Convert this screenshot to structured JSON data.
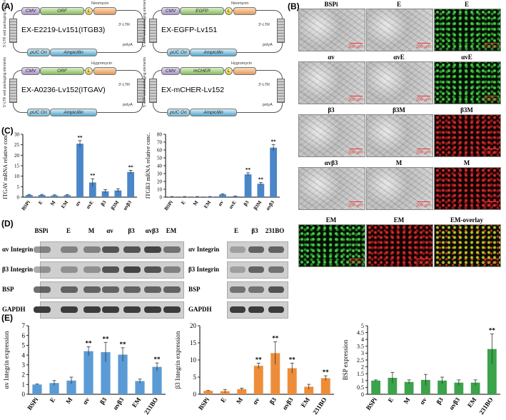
{
  "panels": {
    "A": "(A)",
    "B": "(B)",
    "C": "(C)",
    "D": "(D)",
    "E": "(E)"
  },
  "plasmids": [
    {
      "name": "EX-E2219-Lv151(ITGB3)",
      "orf": "ORF",
      "resistance": "Neomycin"
    },
    {
      "name": "EX-EGFP-Lv151",
      "orf": "EGFP",
      "resistance": "Neomycin"
    },
    {
      "name": "EX-A0236-Lv152(ITGAV)",
      "orf": "ORF",
      "resistance": "Hygromycin"
    },
    {
      "name": "EX-mCHER-Lv152",
      "orf": "mCHER",
      "resistance": "Hygromycin"
    }
  ],
  "plasmid_common": {
    "cmv": "CMV",
    "ltr3": "3'-LTR",
    "ltr5": "5'-LTR and packaging elements",
    "polya": "polyA",
    "ori": "pUC Ori",
    "amp": "Ampicillin",
    "l": "L"
  },
  "micrographs": {
    "labels": [
      [
        "BSPi",
        "E",
        "E"
      ],
      [
        "αv",
        "αvE",
        "αvE"
      ],
      [
        "β3",
        "β3M",
        "β3M"
      ],
      [
        "αvβ3",
        "M",
        "M"
      ],
      [
        "EM",
        "EM",
        "EM-overlay"
      ]
    ],
    "scale": "200 μm"
  },
  "western": {
    "left_lanes": [
      "BSPi",
      "E",
      "M",
      "αv",
      "β3",
      "αvβ3",
      "EM"
    ],
    "right_lanes": [
      "E",
      "β3",
      "231BO"
    ],
    "rows": [
      "αv Integrin",
      "β3 Integrin",
      "BSP",
      "GAPDH"
    ]
  },
  "chart_data": [
    {
      "type": "bar",
      "panel": "C",
      "ylabel": "ITGAV mRNA relative conc.",
      "categories": [
        "BSPi",
        "E",
        "M",
        "EM",
        "αv",
        "αvE",
        "β3",
        "β3M",
        "αvβ3"
      ],
      "values": [
        1,
        1,
        0.8,
        0.9,
        25.5,
        7,
        2.8,
        3.2,
        12
      ],
      "errors": [
        0.3,
        0.3,
        0.3,
        0.3,
        1.5,
        1.8,
        0.8,
        0.8,
        0.8
      ],
      "significance": [
        "",
        "",
        "",
        "",
        "**",
        "**",
        "",
        "",
        "**"
      ],
      "ylim": [
        0,
        30
      ],
      "yticks": [
        0,
        5,
        10,
        15,
        20,
        25,
        30
      ],
      "color": "#4a86c8"
    },
    {
      "type": "bar",
      "panel": "C",
      "ylabel": "ITGB3 mRNA relative conc.",
      "categories": [
        "BSPi",
        "E",
        "M",
        "EM",
        "αv",
        "αvE",
        "β3",
        "β3M",
        "αvβ3"
      ],
      "values": [
        0.5,
        0.5,
        0.5,
        0.5,
        3.5,
        1,
        29,
        17,
        63
      ],
      "errors": [
        0.3,
        0.3,
        0.3,
        0.3,
        0.8,
        0.5,
        2,
        1.5,
        4
      ],
      "significance": [
        "",
        "",
        "",
        "",
        "",
        "",
        "**",
        "**",
        "**"
      ],
      "ylim": [
        0,
        80
      ],
      "yticks": [
        0,
        10,
        20,
        30,
        40,
        50,
        60,
        70,
        80
      ],
      "color": "#4a86c8"
    },
    {
      "type": "bar",
      "panel": "E",
      "ylabel": "αv Integrin expression",
      "categories": [
        "BSPi",
        "E",
        "M",
        "αv",
        "β3",
        "αvβ3",
        "EM",
        "231BO"
      ],
      "values": [
        1,
        1.15,
        1.4,
        4.4,
        4.3,
        4.05,
        1.35,
        2.8
      ],
      "errors": [
        0.05,
        0.25,
        0.35,
        0.45,
        1,
        0.7,
        0.2,
        0.4
      ],
      "significance": [
        "",
        "",
        "",
        "**",
        "**",
        "**",
        "",
        "**"
      ],
      "ylim": [
        0,
        7
      ],
      "yticks": [
        0,
        1,
        2,
        3,
        4,
        5,
        6,
        7
      ],
      "color": "#5b9bd5"
    },
    {
      "type": "bar",
      "panel": "E",
      "ylabel": "β3 Integrin expression",
      "categories": [
        "BSPi",
        "E",
        "M",
        "αv",
        "β3",
        "αvβ3",
        "EM",
        "231BO"
      ],
      "values": [
        1,
        0.9,
        1.5,
        8.3,
        12,
        7.6,
        2.2,
        4.7
      ],
      "errors": [
        0.1,
        0.5,
        0.3,
        0.8,
        3.3,
        1.5,
        0.7,
        0.7
      ],
      "significance": [
        "",
        "",
        "",
        "**",
        "**",
        "**",
        "",
        "**"
      ],
      "ylim": [
        0,
        20
      ],
      "yticks": [
        0,
        5,
        10,
        15,
        20
      ],
      "color": "#ed8d3a"
    },
    {
      "type": "bar",
      "panel": "E",
      "ylabel": "BSP expression",
      "categories": [
        "BSPi",
        "E",
        "M",
        "αv",
        "β3",
        "αvβ3",
        "EM",
        "231BO"
      ],
      "values": [
        1,
        1.2,
        0.9,
        1.05,
        1,
        0.85,
        0.85,
        3.3
      ],
      "errors": [
        0.05,
        0.4,
        0.15,
        0.4,
        0.25,
        0.2,
        0.2,
        1.1
      ],
      "significance": [
        "",
        "",
        "",
        "",
        "",
        "",
        "",
        "**"
      ],
      "ylim": [
        0,
        5
      ],
      "yticks": [
        0,
        0.5,
        1,
        1.5,
        2,
        2.5,
        3,
        3.5,
        4,
        4.5,
        5
      ],
      "color": "#3ba34a"
    }
  ]
}
